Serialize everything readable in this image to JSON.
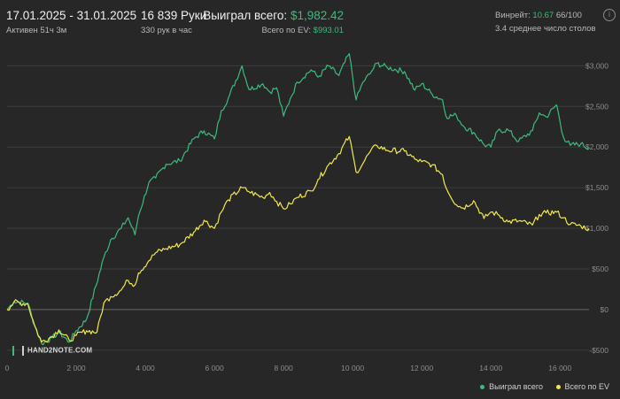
{
  "header": {
    "date_range": "17.01.2025 - 31.01.2025",
    "active": "Активен 51ч 3м",
    "hands": "16 839 Руки",
    "per_hour": "330 рук в час",
    "won_label": "Выиграл всего:",
    "won_value": "$1,982.42",
    "ev_label": "Всего по EV:",
    "ev_value": "$993.01",
    "winrate_label": "Винрейт:",
    "winrate_value": "10.67",
    "winrate_extra": "66/100",
    "avg_tables": "3.4 среднее число столов",
    "info_icon": "i"
  },
  "logo": {
    "text": "HAND2NOTE.COM"
  },
  "colors": {
    "won": "#3dbb7d",
    "ev": "#f2e84b",
    "background": "#272727",
    "grid": "#3d3d3d"
  },
  "chart_data": {
    "type": "line",
    "xlim": [
      0,
      16839
    ],
    "ylim": [
      -600,
      3200
    ],
    "x_ticks": [
      0,
      2000,
      4000,
      6000,
      8000,
      10000,
      12000,
      14000,
      16000
    ],
    "x_tick_labels": [
      "0",
      "2 000",
      "4 000",
      "6 000",
      "8 000",
      "10 000",
      "12 000",
      "14 000",
      "16 000"
    ],
    "y_ticks": [
      3000,
      2500,
      2000,
      1500,
      1000,
      500,
      0,
      -500
    ],
    "y_tick_labels": [
      "$3,000",
      "$2,500",
      "$2,000",
      "$1,500",
      "$1,000",
      "$500",
      "$0",
      "-$500"
    ],
    "grid": true,
    "legend_position": "bottom-right",
    "series": [
      {
        "name": "Выиграл всего",
        "color": "#3dbb7d",
        "points": [
          [
            0,
            0
          ],
          [
            200,
            100
          ],
          [
            600,
            80
          ],
          [
            800,
            -200
          ],
          [
            1000,
            -420
          ],
          [
            1300,
            -350
          ],
          [
            1500,
            -280
          ],
          [
            1800,
            -400
          ],
          [
            2000,
            -260
          ],
          [
            2300,
            -120
          ],
          [
            2800,
            640
          ],
          [
            3000,
            860
          ],
          [
            3300,
            1000
          ],
          [
            3500,
            1130
          ],
          [
            3700,
            920
          ],
          [
            3800,
            1150
          ],
          [
            4100,
            1560
          ],
          [
            4300,
            1620
          ],
          [
            4600,
            1790
          ],
          [
            5000,
            1830
          ],
          [
            5400,
            2100
          ],
          [
            5700,
            2200
          ],
          [
            6000,
            2100
          ],
          [
            6200,
            2450
          ],
          [
            6400,
            2600
          ],
          [
            6800,
            3000
          ],
          [
            7000,
            2710
          ],
          [
            7400,
            2780
          ],
          [
            7600,
            2680
          ],
          [
            7800,
            2730
          ],
          [
            8000,
            2380
          ],
          [
            8200,
            2600
          ],
          [
            8400,
            2800
          ],
          [
            8800,
            2950
          ],
          [
            9000,
            2860
          ],
          [
            9300,
            3000
          ],
          [
            9600,
            2880
          ],
          [
            9900,
            3150
          ],
          [
            10100,
            2580
          ],
          [
            10300,
            2800
          ],
          [
            10500,
            2900
          ],
          [
            10700,
            3030
          ],
          [
            11000,
            2980
          ],
          [
            11500,
            2930
          ],
          [
            11800,
            2700
          ],
          [
            12000,
            2780
          ],
          [
            12300,
            2650
          ],
          [
            12600,
            2580
          ],
          [
            12700,
            2380
          ],
          [
            13000,
            2390
          ],
          [
            13200,
            2260
          ],
          [
            13500,
            2180
          ],
          [
            13800,
            2030
          ],
          [
            14000,
            2000
          ],
          [
            14200,
            2200
          ],
          [
            14500,
            2210
          ],
          [
            14800,
            2070
          ],
          [
            15200,
            2200
          ],
          [
            15400,
            2420
          ],
          [
            15600,
            2370
          ],
          [
            15900,
            2520
          ],
          [
            16100,
            2120
          ],
          [
            16300,
            2020
          ],
          [
            16600,
            2040
          ],
          [
            16839,
            1982.42
          ]
        ]
      },
      {
        "name": "Всего по EV",
        "color": "#f2e84b",
        "points": [
          [
            0,
            0
          ],
          [
            200,
            90
          ],
          [
            600,
            70
          ],
          [
            800,
            -200
          ],
          [
            1000,
            -400
          ],
          [
            1300,
            -330
          ],
          [
            1500,
            -250
          ],
          [
            1800,
            -380
          ],
          [
            2000,
            -320
          ],
          [
            2300,
            -260
          ],
          [
            2600,
            -280
          ],
          [
            2800,
            80
          ],
          [
            3000,
            160
          ],
          [
            3300,
            240
          ],
          [
            3500,
            360
          ],
          [
            3700,
            300
          ],
          [
            3800,
            450
          ],
          [
            4100,
            600
          ],
          [
            4300,
            700
          ],
          [
            4600,
            750
          ],
          [
            5000,
            800
          ],
          [
            5400,
            950
          ],
          [
            5700,
            1100
          ],
          [
            6000,
            1000
          ],
          [
            6200,
            1200
          ],
          [
            6400,
            1350
          ],
          [
            6800,
            1500
          ],
          [
            7000,
            1450
          ],
          [
            7400,
            1380
          ],
          [
            7600,
            1440
          ],
          [
            7800,
            1330
          ],
          [
            8000,
            1240
          ],
          [
            8200,
            1300
          ],
          [
            8400,
            1380
          ],
          [
            8800,
            1460
          ],
          [
            9000,
            1600
          ],
          [
            9300,
            1780
          ],
          [
            9600,
            1920
          ],
          [
            9900,
            2130
          ],
          [
            10100,
            1690
          ],
          [
            10300,
            1800
          ],
          [
            10500,
            1940
          ],
          [
            10700,
            2020
          ],
          [
            11000,
            1960
          ],
          [
            11500,
            1950
          ],
          [
            11800,
            1850
          ],
          [
            12000,
            1820
          ],
          [
            12300,
            1780
          ],
          [
            12600,
            1660
          ],
          [
            12700,
            1500
          ],
          [
            13000,
            1290
          ],
          [
            13200,
            1250
          ],
          [
            13500,
            1340
          ],
          [
            13800,
            1120
          ],
          [
            14000,
            1200
          ],
          [
            14200,
            1170
          ],
          [
            14500,
            1080
          ],
          [
            14800,
            1090
          ],
          [
            15200,
            1040
          ],
          [
            15400,
            1170
          ],
          [
            15600,
            1190
          ],
          [
            15900,
            1200
          ],
          [
            16100,
            1130
          ],
          [
            16300,
            1050
          ],
          [
            16600,
            1030
          ],
          [
            16839,
            993.01
          ]
        ]
      }
    ]
  }
}
